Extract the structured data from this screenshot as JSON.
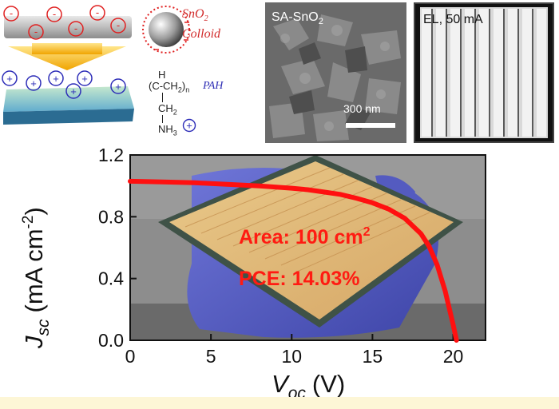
{
  "schematic": {
    "colloid_label_line1": "SnO",
    "colloid_label_sub": "2",
    "colloid_label_line2": "Colloid",
    "pah_label": "PAH",
    "chem_h": "H",
    "chem_backbone": "(C-CH",
    "chem_backbone_sub": "2",
    "chem_backbone_end": ")",
    "chem_n": "n",
    "chem_ch2": "CH",
    "chem_ch2_sub": "2",
    "chem_nh3": "NH",
    "chem_nh3_sub": "3",
    "minus_sign": "-",
    "plus_sign": "+"
  },
  "sem": {
    "label": "SA-SnO",
    "label_sub": "2",
    "scale_label": "300 nm"
  },
  "el": {
    "label": "EL, 50 mA"
  },
  "chart_data": {
    "type": "line",
    "xlabel": "V",
    "xlabel_sub": "oc",
    "xlabel_unit": "(V)",
    "ylabel": "J",
    "ylabel_sub": "sc",
    "ylabel_unit": "(mA cm",
    "ylabel_sup": "-2",
    "ylabel_close": ")",
    "xlim": [
      0,
      22
    ],
    "ylim": [
      0,
      1.2
    ],
    "xticks": [
      0,
      5,
      10,
      15,
      20
    ],
    "xtick_labels": [
      "0",
      "5",
      "10",
      "15",
      "20"
    ],
    "yticks": [
      0,
      0.4,
      0.8,
      1.2
    ],
    "ytick_labels": [
      "0.0",
      "0.4",
      "0.8",
      "1.2"
    ],
    "annotations": {
      "area_text": "Area: 100 cm",
      "area_sup": "2",
      "pce_text": "PCE: 14.03%"
    },
    "series": [
      {
        "color": "#ff1010",
        "x": [
          0,
          2,
          4,
          6,
          8,
          10,
          11,
          12,
          13,
          14,
          15,
          16,
          17,
          18,
          18.5,
          19,
          19.5,
          20,
          20.2
        ],
        "y": [
          1.03,
          1.025,
          1.02,
          1.01,
          1.0,
          0.985,
          0.975,
          0.96,
          0.945,
          0.92,
          0.89,
          0.85,
          0.79,
          0.69,
          0.61,
          0.49,
          0.32,
          0.1,
          0.0
        ]
      }
    ]
  }
}
